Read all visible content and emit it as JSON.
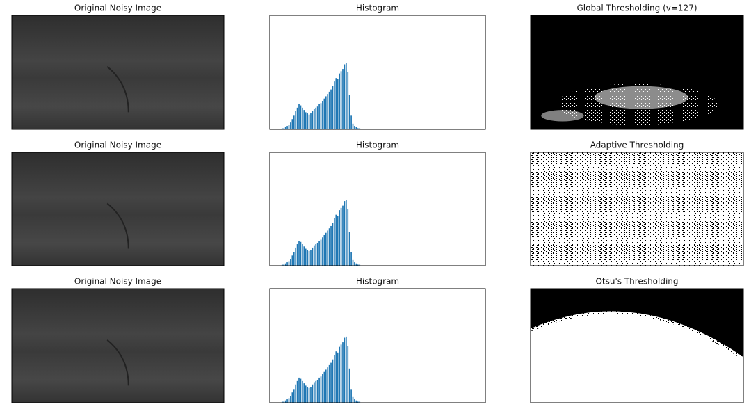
{
  "chart_data": [
    {
      "type": "image",
      "title": "Original Noisy Image"
    },
    {
      "type": "histogram",
      "title": "Histogram",
      "color": "#1f77b4",
      "xlim": [
        0,
        256
      ],
      "ylim": [
        0,
        100
      ],
      "bins": [
        14,
        16,
        18,
        20,
        22,
        24,
        26,
        28,
        30,
        32,
        34,
        36,
        38,
        40,
        42,
        44,
        46,
        48,
        50,
        52,
        54,
        56,
        58,
        60,
        62,
        64,
        66,
        68,
        70,
        72,
        74,
        76,
        78,
        80,
        82,
        84,
        86,
        88,
        90,
        92,
        94,
        96,
        98,
        100,
        102,
        104,
        106,
        108,
        110
      ],
      "values": [
        1,
        1,
        2,
        3,
        4,
        6,
        9,
        12,
        16,
        19,
        22,
        21,
        19,
        17,
        15,
        14,
        13,
        14,
        16,
        18,
        19,
        20,
        22,
        23,
        25,
        27,
        29,
        31,
        33,
        35,
        38,
        42,
        45,
        44,
        49,
        51,
        53,
        57,
        58,
        50,
        30,
        12,
        5,
        3,
        2,
        1,
        1,
        0
      ]
    },
    {
      "type": "image",
      "title": "Global Thresholding (v=127)"
    },
    {
      "type": "image",
      "title": "Original Noisy Image"
    },
    {
      "type": "histogram",
      "title": "Histogram",
      "color": "#1f77b4",
      "xlim": [
        0,
        256
      ],
      "ylim": [
        0,
        100
      ],
      "bins": [
        14,
        16,
        18,
        20,
        22,
        24,
        26,
        28,
        30,
        32,
        34,
        36,
        38,
        40,
        42,
        44,
        46,
        48,
        50,
        52,
        54,
        56,
        58,
        60,
        62,
        64,
        66,
        68,
        70,
        72,
        74,
        76,
        78,
        80,
        82,
        84,
        86,
        88,
        90,
        92,
        94,
        96,
        98,
        100,
        102,
        104,
        106,
        108,
        110
      ],
      "values": [
        1,
        1,
        2,
        3,
        4,
        6,
        9,
        12,
        16,
        19,
        22,
        21,
        19,
        17,
        15,
        14,
        13,
        14,
        16,
        18,
        19,
        20,
        22,
        23,
        25,
        27,
        29,
        31,
        33,
        35,
        38,
        42,
        45,
        44,
        49,
        51,
        53,
        57,
        58,
        50,
        30,
        12,
        5,
        3,
        2,
        1,
        1,
        0
      ]
    },
    {
      "type": "image",
      "title": "Adaptive Thresholding"
    },
    {
      "type": "image",
      "title": "Original Noisy Image"
    },
    {
      "type": "histogram",
      "title": "Histogram",
      "color": "#1f77b4",
      "xlim": [
        0,
        256
      ],
      "ylim": [
        0,
        100
      ],
      "bins": [
        14,
        16,
        18,
        20,
        22,
        24,
        26,
        28,
        30,
        32,
        34,
        36,
        38,
        40,
        42,
        44,
        46,
        48,
        50,
        52,
        54,
        56,
        58,
        60,
        62,
        64,
        66,
        68,
        70,
        72,
        74,
        76,
        78,
        80,
        82,
        84,
        86,
        88,
        90,
        92,
        94,
        96,
        98,
        100,
        102,
        104,
        106,
        108,
        110
      ],
      "values": [
        1,
        1,
        2,
        3,
        4,
        6,
        9,
        12,
        16,
        19,
        22,
        21,
        19,
        17,
        15,
        14,
        13,
        14,
        16,
        18,
        19,
        20,
        22,
        23,
        25,
        27,
        29,
        31,
        33,
        35,
        38,
        42,
        45,
        44,
        49,
        51,
        53,
        57,
        58,
        50,
        30,
        12,
        5,
        3,
        2,
        1,
        1,
        0
      ]
    },
    {
      "type": "image",
      "title": "Otsu's Thresholding"
    }
  ]
}
